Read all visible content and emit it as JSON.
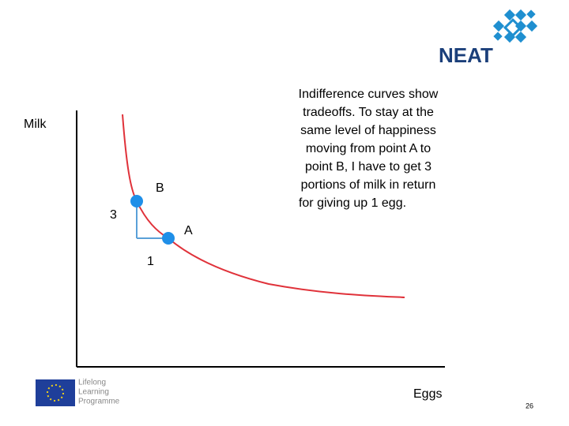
{
  "logo": {
    "text": "NEAT"
  },
  "diagram": {
    "y_axis_label": "Milk",
    "x_axis_label": "Eggs",
    "points": [
      {
        "label": "B"
      },
      {
        "label": "A"
      }
    ],
    "milk_change": 3,
    "egg_change": 1
  },
  "explanation": {
    "lines": [
      "Indifference curves show",
      "tradeoffs. To stay at the",
      "same level of happiness",
      "moving from point A to",
      "point B, I have to get 3",
      "portions of milk in return",
      "for giving up 1 egg."
    ]
  },
  "footer": {
    "programme_lines": [
      "Lifelong",
      "Learning",
      "Programme"
    ],
    "page_number": 26
  }
}
